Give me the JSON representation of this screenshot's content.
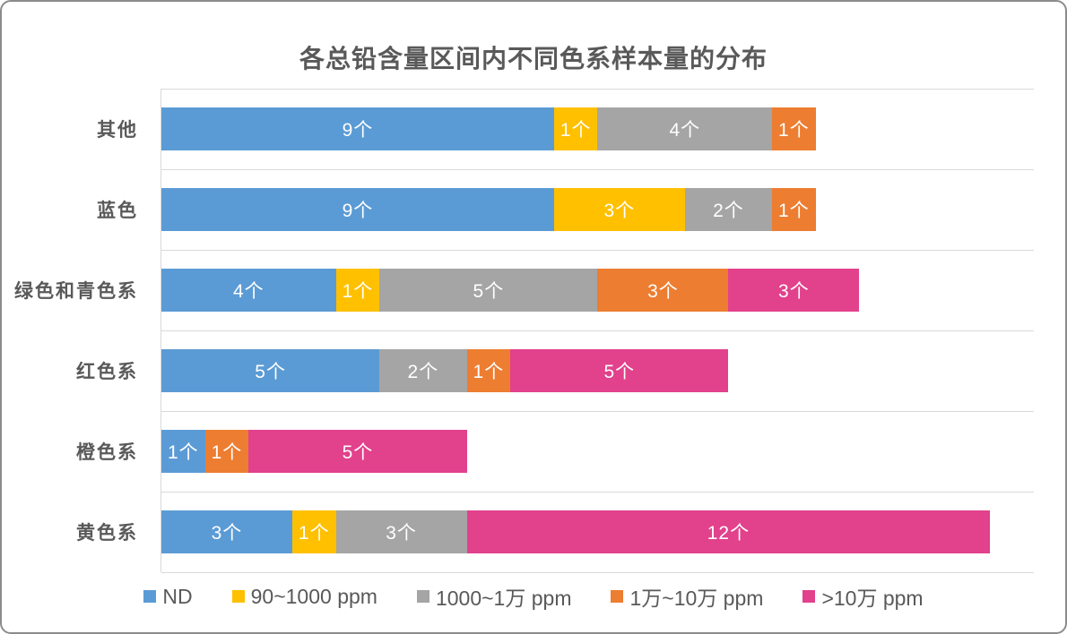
{
  "window": {
    "background": "#FFFFFF",
    "border_color": "#8C8C8C"
  },
  "chart_data": {
    "type": "bar",
    "orientation": "horizontal",
    "stacked": true,
    "title": "各总铅含量区间内不同色系样本量的分布",
    "title_color": "#595959",
    "categories": [
      "其他",
      "蓝色",
      "绿色和青色系",
      "红色系",
      "橙色系",
      "黄色系"
    ],
    "series": [
      {
        "name": "ND",
        "color": "#5B9BD5",
        "values": [
          9,
          9,
          4,
          5,
          1,
          3
        ]
      },
      {
        "name": "90~1000 ppm",
        "color": "#FFC000",
        "values": [
          1,
          3,
          1,
          0,
          0,
          1
        ]
      },
      {
        "name": "1000~1万 ppm",
        "color": "#A5A5A5",
        "values": [
          4,
          2,
          5,
          2,
          0,
          3
        ]
      },
      {
        "name": "1万~10万 ppm",
        "color": "#ED7D31",
        "values": [
          1,
          1,
          3,
          1,
          1,
          0
        ]
      },
      {
        "name": ">10万 ppm",
        "color": "#E2418C",
        "values": [
          0,
          0,
          3,
          5,
          5,
          12
        ]
      }
    ],
    "totals_per_category": [
      15,
      15,
      16,
      13,
      7,
      19
    ],
    "xlabel": "",
    "ylabel": "",
    "xlim": [
      0,
      20
    ],
    "value_axis_labels_visible": false,
    "unit_suffix": "个",
    "data_label_color": "#FFFFFF",
    "grid": "category-boundary-lines",
    "gridline_color": "#D9D9D9",
    "legend_position": "bottom"
  }
}
